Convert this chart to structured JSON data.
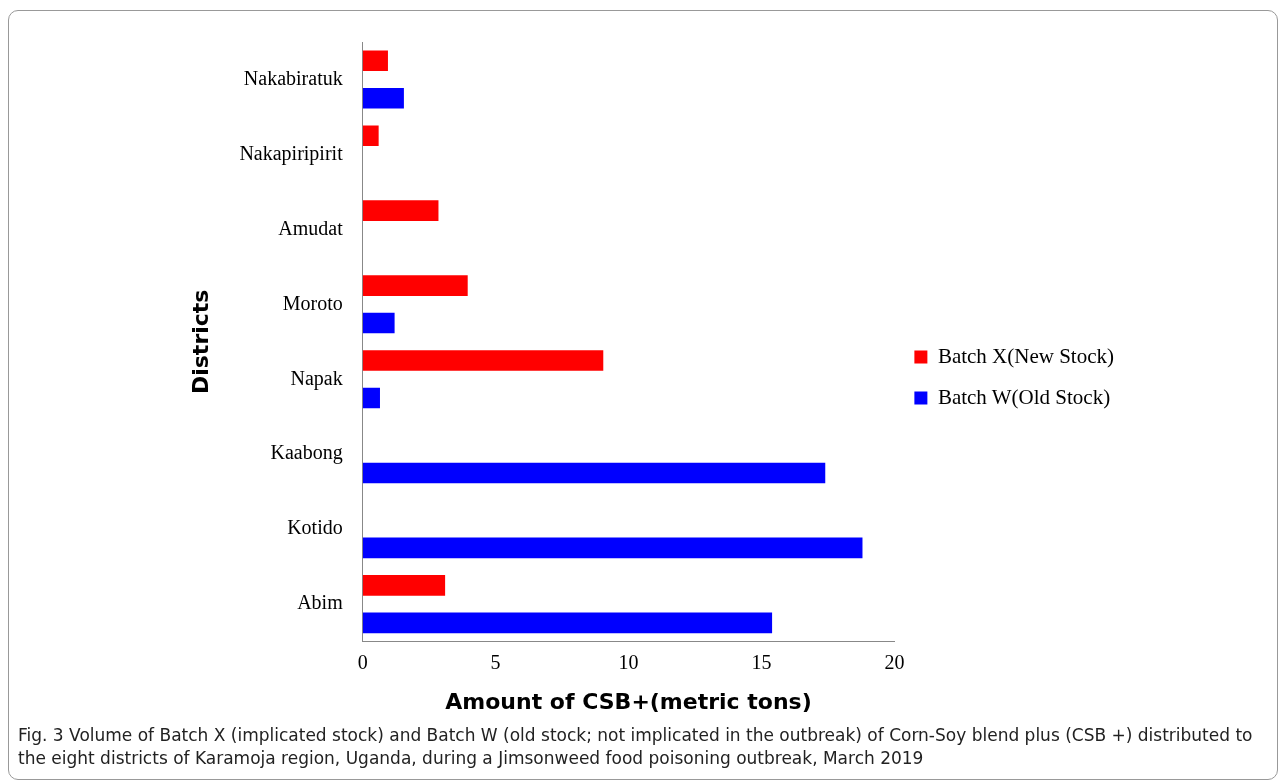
{
  "chart_data": {
    "type": "bar",
    "orientation": "horizontal",
    "xlabel": "Amount of CSB+(metric tons)",
    "ylabel": "Districts",
    "categories": [
      "Nakabiratuk",
      "Nakapiripirit",
      "Amudat",
      "Moroto",
      "Napak",
      "Kaabong",
      "Kotido",
      "Abim"
    ],
    "series": [
      {
        "name": "Batch X(New Stock)",
        "color": "#ff0000",
        "values": [
          0.95,
          0.6,
          2.85,
          3.95,
          9.05,
          0,
          0,
          3.1
        ]
      },
      {
        "name": "Batch W(Old Stock)",
        "color": "#0000ff",
        "values": [
          1.55,
          0,
          0,
          1.2,
          0.65,
          17.4,
          18.8,
          15.4
        ]
      }
    ],
    "xlim": [
      0,
      20
    ],
    "xticks": [
      0,
      5,
      10,
      15,
      20
    ],
    "grid": false,
    "legend": "right",
    "annotations": [
      "Fig. 3  Volume of Batch X (implicated stock) and Batch W (old stock; not implicated in the outbreak) of Corn-Soy blend plus (CSB +) distributed to the eight districts of Karamoja region, Uganda, during a Jimsonweed food poisoning outbreak, March 2019"
    ]
  }
}
